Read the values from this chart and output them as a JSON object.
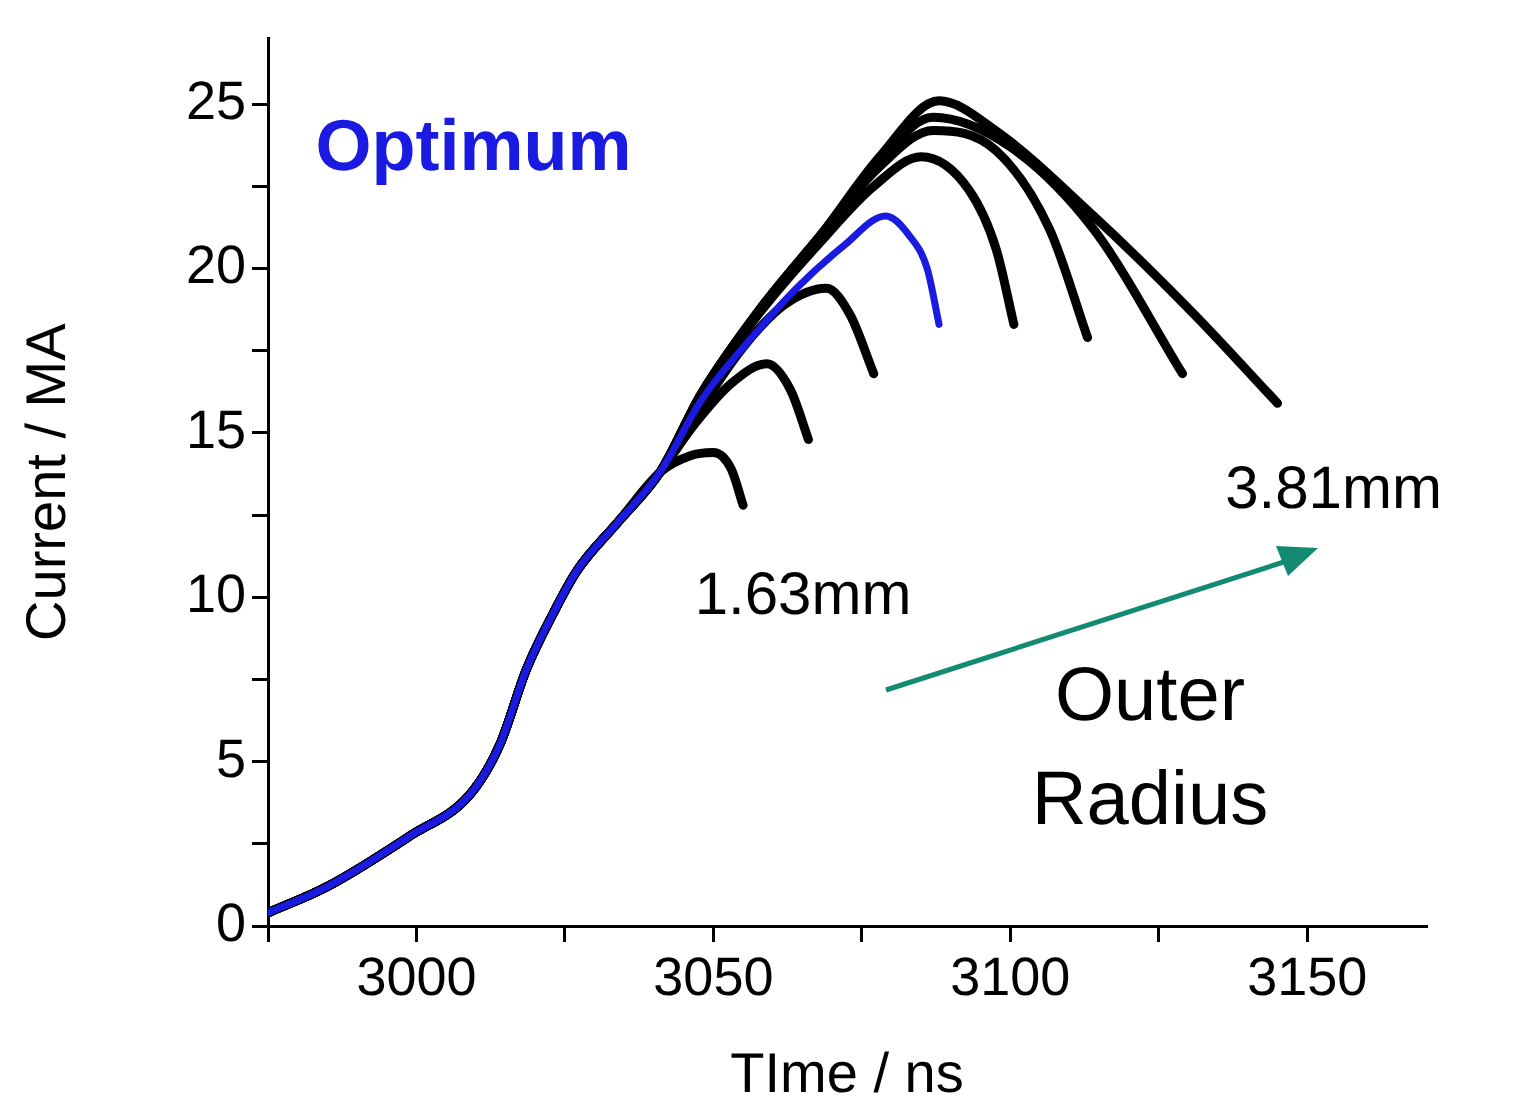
{
  "chart_data": {
    "type": "line",
    "xlabel": "TIme / ns",
    "ylabel": "Current / MA",
    "xlim": [
      2975,
      3170
    ],
    "ylim": [
      0,
      27
    ],
    "xticks": [
      {
        "value": 2975,
        "label": null
      },
      3000,
      {
        "value": 3025,
        "label": null
      },
      3050,
      {
        "value": 3075,
        "label": null
      },
      3100,
      {
        "value": 3125,
        "label": null
      },
      3150
    ],
    "yticks": [
      0,
      {
        "value": 2.5,
        "label": null
      },
      5,
      {
        "value": 7.5,
        "label": null
      },
      10,
      {
        "value": 12.5,
        "label": null
      },
      15,
      {
        "value": 17.5,
        "label": null
      },
      20,
      {
        "value": 22.5,
        "label": null
      },
      25
    ],
    "grid": false,
    "legend": false,
    "marker": "none",
    "line_style": "solid",
    "annotations": [
      "Outer Radius"
    ],
    "series": [
      {
        "name": "1.63mm",
        "color": "#000000",
        "x": [
          2975,
          2985,
          2999,
          3009,
          3014,
          3018.5,
          3023,
          3027,
          3034,
          3041,
          3046,
          3050,
          3053,
          3055
        ],
        "values": [
          0.4,
          1.2,
          2.75,
          4.0,
          5.5,
          7.8,
          9.5,
          10.8,
          12.3,
          13.8,
          14.3,
          14.4,
          13.9,
          12.8
        ]
      },
      {
        "color": "#000000",
        "x": [
          2975,
          2985,
          2999,
          3009,
          3014,
          3018.5,
          3023,
          3027,
          3034,
          3041,
          3047,
          3053,
          3059,
          3063,
          3066
        ],
        "values": [
          0.4,
          1.2,
          2.75,
          4.0,
          5.5,
          7.8,
          9.5,
          10.8,
          12.3,
          13.8,
          15.3,
          16.5,
          17.1,
          16.3,
          14.8
        ]
      },
      {
        "color": "#000000",
        "x": [
          2975,
          2985,
          2999,
          3009,
          3014,
          3018.5,
          3023,
          3027,
          3034,
          3041,
          3047,
          3055,
          3062,
          3069,
          3073,
          3077
        ],
        "values": [
          0.4,
          1.2,
          2.75,
          4.0,
          5.5,
          7.8,
          9.5,
          10.8,
          12.3,
          13.8,
          15.5,
          17.6,
          18.9,
          19.4,
          18.6,
          16.8
        ]
      },
      {
        "name": "Optimum",
        "color": "#1a1ae0",
        "x": [
          2975,
          2985,
          2999,
          3009,
          3014,
          3018.5,
          3023,
          3027,
          3034,
          3041,
          3048,
          3056,
          3064,
          3072,
          3079,
          3083,
          3086,
          3088
        ],
        "values": [
          0.4,
          1.2,
          2.75,
          4.0,
          5.5,
          7.8,
          9.5,
          10.8,
          12.3,
          13.8,
          16.0,
          17.8,
          19.4,
          20.7,
          21.6,
          21.0,
          20.0,
          18.3
        ]
      },
      {
        "color": "#000000",
        "x": [
          2975,
          2985,
          2999,
          3009,
          3014,
          3018.5,
          3023,
          3027,
          3034,
          3041,
          3048,
          3058,
          3068,
          3077,
          3085,
          3093,
          3097.6,
          3100.6
        ],
        "values": [
          0.4,
          1.2,
          2.75,
          4.0,
          5.5,
          7.8,
          9.5,
          10.8,
          12.3,
          13.8,
          16.2,
          18.7,
          20.8,
          22.5,
          23.4,
          22.4,
          20.6,
          18.3
        ]
      },
      {
        "color": "#000000",
        "x": [
          2975,
          2985,
          2999,
          3009,
          3014,
          3018.5,
          3023,
          3027,
          3034,
          3041,
          3048,
          3058,
          3068,
          3078,
          3087,
          3097.5,
          3106.6,
          3113
        ],
        "values": [
          0.4,
          1.2,
          2.75,
          4.0,
          5.5,
          7.8,
          9.5,
          10.8,
          12.3,
          13.8,
          16.2,
          18.8,
          21.0,
          23.1,
          24.2,
          23.6,
          21.2,
          17.9
        ]
      },
      {
        "color": "#000000",
        "x": [
          2975,
          2985,
          2999,
          3009,
          3014,
          3018.5,
          3023,
          3027,
          3034,
          3041,
          3048,
          3058,
          3068,
          3078,
          3087,
          3100,
          3114,
          3129
        ],
        "values": [
          0.4,
          1.2,
          2.75,
          4.0,
          5.5,
          7.8,
          9.5,
          10.8,
          12.3,
          13.8,
          16.2,
          18.8,
          21.0,
          23.3,
          24.6,
          23.7,
          21.2,
          16.8
        ]
      },
      {
        "name": "3.81mm",
        "color": "#000000",
        "x": [
          2975,
          2985,
          2999,
          3009,
          3014,
          3018.5,
          3023,
          3027,
          3034,
          3041,
          3048,
          3058,
          3068,
          3078,
          3088,
          3097.5,
          3114,
          3131,
          3145
        ],
        "values": [
          0.4,
          1.2,
          2.75,
          4.0,
          5.5,
          7.8,
          9.5,
          10.8,
          12.3,
          13.8,
          16.2,
          18.8,
          21.0,
          23.4,
          25.1,
          24.2,
          21.6,
          18.6,
          15.9
        ]
      }
    ]
  }
}
